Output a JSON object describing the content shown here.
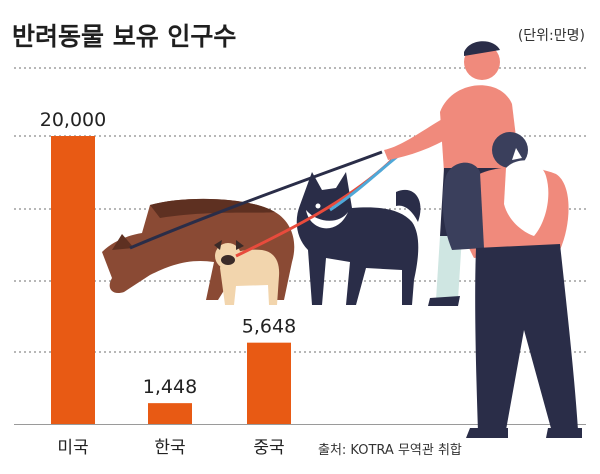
{
  "chart_data": {
    "type": "bar",
    "title": "반려동물 보유 인구수",
    "unit_label": "(단위:만명)",
    "categories": [
      "미국",
      "한국",
      "중국"
    ],
    "values": [
      20000,
      1448,
      5648
    ],
    "value_labels": [
      "20,000",
      "1,448",
      "5,648"
    ],
    "ylim": [
      0,
      20000
    ],
    "grid": true,
    "source": "출처: KOTRA 무역관 취합",
    "colors": {
      "bar": "#e85a14",
      "grid": "#6f6f6f",
      "title": "#1f1f1f"
    }
  },
  "illustration": {
    "icons": [
      "dog-walker-icon",
      "dog-icon",
      "pug-icon",
      "husky-icon",
      "cat-icon"
    ]
  }
}
